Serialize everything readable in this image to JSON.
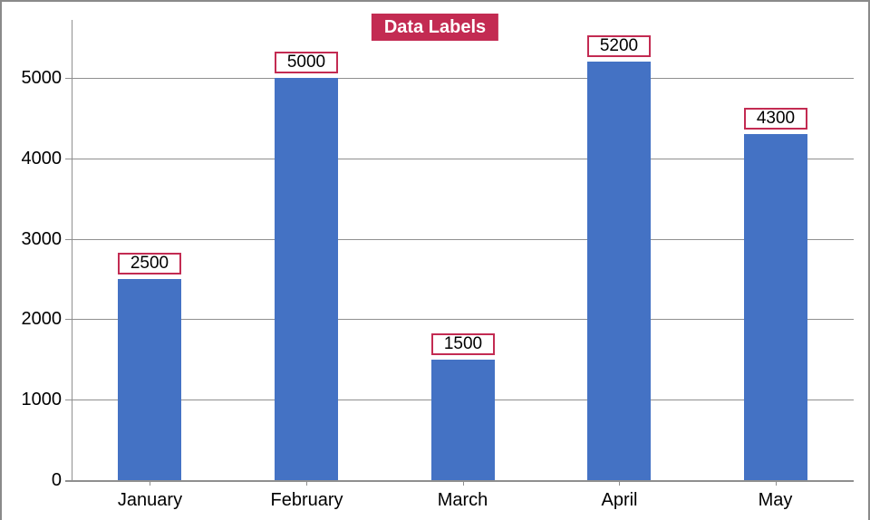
{
  "chart_data": {
    "type": "bar",
    "title": "Data Labels",
    "categories": [
      "January",
      "February",
      "March",
      "April",
      "May"
    ],
    "values": [
      2500,
      5000,
      1500,
      5200,
      4300
    ],
    "data_labels": true,
    "xlabel": "",
    "ylabel": "",
    "ylim": [
      0,
      5000
    ],
    "yticks": [
      0,
      1000,
      2000,
      3000,
      4000,
      5000
    ],
    "grid": true,
    "legend_position": "none"
  },
  "colors": {
    "bar_fill": "#4472C4",
    "accent": "#C32B52",
    "grid_line": "#8f8f8f",
    "axis_line": "#8f8f8f",
    "frame_border": "#8a8a8a",
    "title_text": "#ffffff",
    "data_label_bg": "#ffffff",
    "data_label_text": "#000000",
    "tick_label_text": "#000000"
  }
}
